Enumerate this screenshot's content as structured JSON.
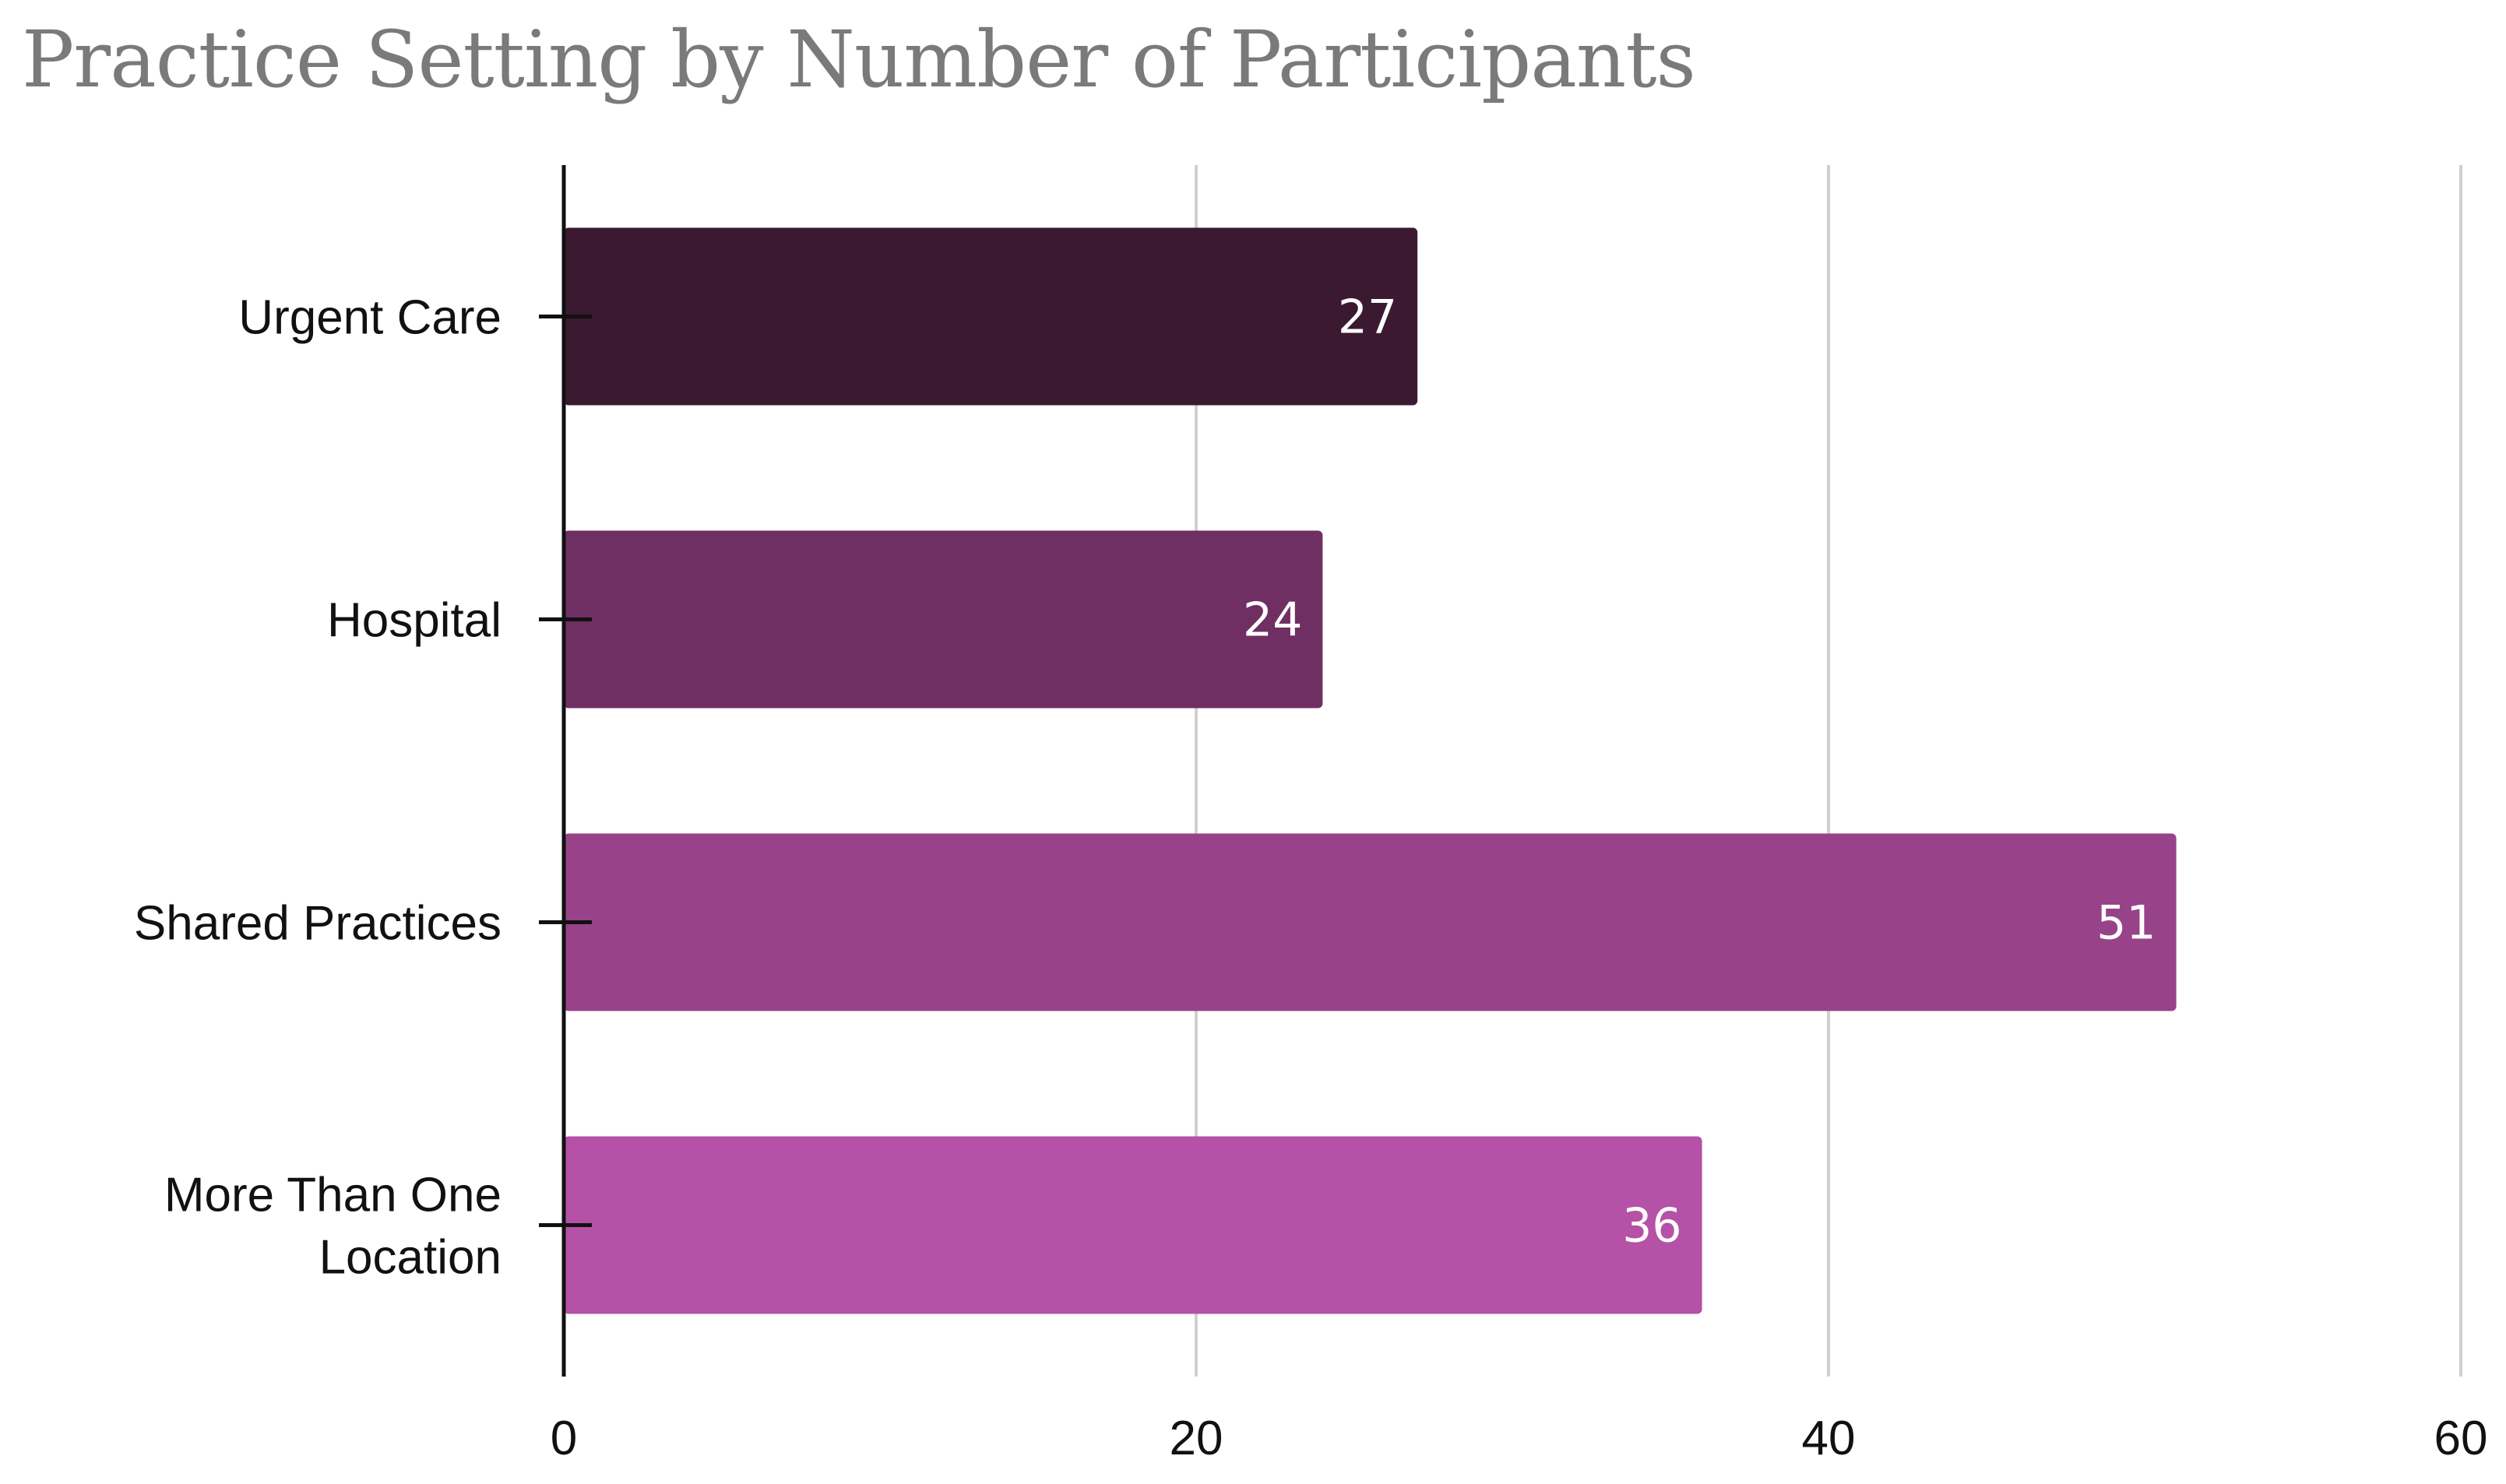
{
  "chart_data": {
    "type": "bar",
    "orientation": "horizontal",
    "title": "Practice Setting by Number of Participants",
    "categories": [
      [
        "Urgent Care"
      ],
      [
        "Hospital"
      ],
      [
        "Shared Practices"
      ],
      [
        "More Than One",
        "Location"
      ]
    ],
    "values": [
      27,
      24,
      51,
      36
    ],
    "colors": [
      "#3b1a31",
      "#702f63",
      "#984389",
      "#b551a6"
    ],
    "xlim": [
      0,
      60
    ],
    "xticks": [
      0,
      20,
      40,
      60
    ],
    "xlabel": "",
    "ylabel": "",
    "grid": true,
    "data_labels": true
  }
}
